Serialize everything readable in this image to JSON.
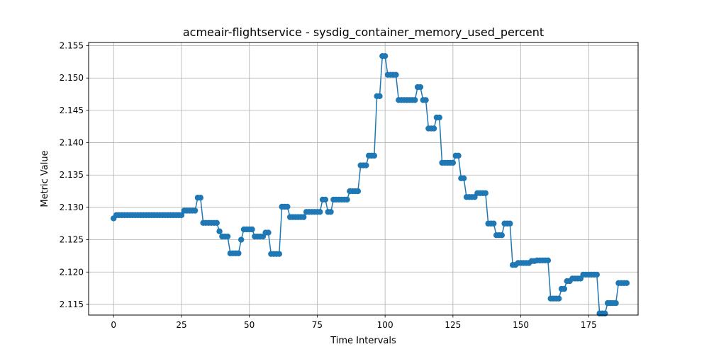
{
  "chart_data": {
    "type": "line",
    "title": "acmeair-flightservice - sysdig_container_memory_used_percent",
    "xlabel": "Time Intervals",
    "ylabel": "Metric Value",
    "xlim": [
      -9.2,
      193.2
    ],
    "ylim": [
      2.11335,
      2.1555
    ],
    "xticks": [
      0,
      25,
      50,
      75,
      100,
      125,
      150,
      175
    ],
    "yticks": [
      2.115,
      2.12,
      2.125,
      2.13,
      2.135,
      2.14,
      2.145,
      2.15,
      2.155
    ],
    "ytick_labels": [
      "2.115",
      "2.120",
      "2.125",
      "2.130",
      "2.135",
      "2.140",
      "2.145",
      "2.150",
      "2.155"
    ],
    "grid": true,
    "line_color": "#1f77b4",
    "marker": "circle",
    "series": [
      {
        "values": [
          2.1283,
          2.1288,
          2.1288,
          2.1288,
          2.1288,
          2.1288,
          2.1288,
          2.1288,
          2.1288,
          2.1288,
          2.1288,
          2.1288,
          2.1288,
          2.1288,
          2.1288,
          2.1288,
          2.1288,
          2.1288,
          2.1288,
          2.1288,
          2.1288,
          2.1288,
          2.1288,
          2.1288,
          2.1288,
          2.1288,
          2.1295,
          2.1295,
          2.1295,
          2.1295,
          2.1295,
          2.1315,
          2.1315,
          2.1276,
          2.1276,
          2.1276,
          2.1276,
          2.1276,
          2.1276,
          2.1263,
          2.1255,
          2.1255,
          2.1255,
          2.1229,
          2.1229,
          2.1229,
          2.1229,
          2.125,
          2.1266,
          2.1266,
          2.1266,
          2.1266,
          2.1255,
          2.1255,
          2.1255,
          2.1255,
          2.1261,
          2.1261,
          2.1228,
          2.1228,
          2.1228,
          2.1228,
          2.1301,
          2.1301,
          2.1301,
          2.1285,
          2.1285,
          2.1285,
          2.1285,
          2.1285,
          2.1285,
          2.1293,
          2.1293,
          2.1293,
          2.1293,
          2.1293,
          2.1293,
          2.1312,
          2.1312,
          2.1293,
          2.1293,
          2.1312,
          2.1312,
          2.1312,
          2.1312,
          2.1312,
          2.1312,
          2.1325,
          2.1325,
          2.1325,
          2.1325,
          2.1365,
          2.1365,
          2.1365,
          2.138,
          2.138,
          2.138,
          2.1472,
          2.1472,
          2.1534,
          2.1534,
          2.1505,
          2.1505,
          2.1505,
          2.1505,
          2.1466,
          2.1466,
          2.1466,
          2.1466,
          2.1466,
          2.1466,
          2.1466,
          2.1486,
          2.1486,
          2.1466,
          2.1466,
          2.1422,
          2.1422,
          2.1422,
          2.1439,
          2.1439,
          2.1369,
          2.1369,
          2.1369,
          2.1369,
          2.1369,
          2.138,
          2.138,
          2.1345,
          2.1345,
          2.1316,
          2.1316,
          2.1316,
          2.1316,
          2.1322,
          2.1322,
          2.1322,
          2.1322,
          2.1275,
          2.1275,
          2.1275,
          2.1257,
          2.1257,
          2.1257,
          2.1275,
          2.1275,
          2.1275,
          2.1211,
          2.1211,
          2.1214,
          2.1214,
          2.1214,
          2.1214,
          2.1214,
          2.1217,
          2.1217,
          2.1218,
          2.1218,
          2.1218,
          2.1218,
          2.1218,
          2.1159,
          2.1159,
          2.1159,
          2.1159,
          2.1174,
          2.1174,
          2.1186,
          2.1186,
          2.119,
          2.119,
          2.119,
          2.119,
          2.1196,
          2.1196,
          2.1196,
          2.1196,
          2.1196,
          2.1196,
          2.1136,
          2.1136,
          2.1136,
          2.1152,
          2.1152,
          2.1152,
          2.1152,
          2.1183,
          2.1183,
          2.1183,
          2.1183
        ]
      }
    ]
  }
}
